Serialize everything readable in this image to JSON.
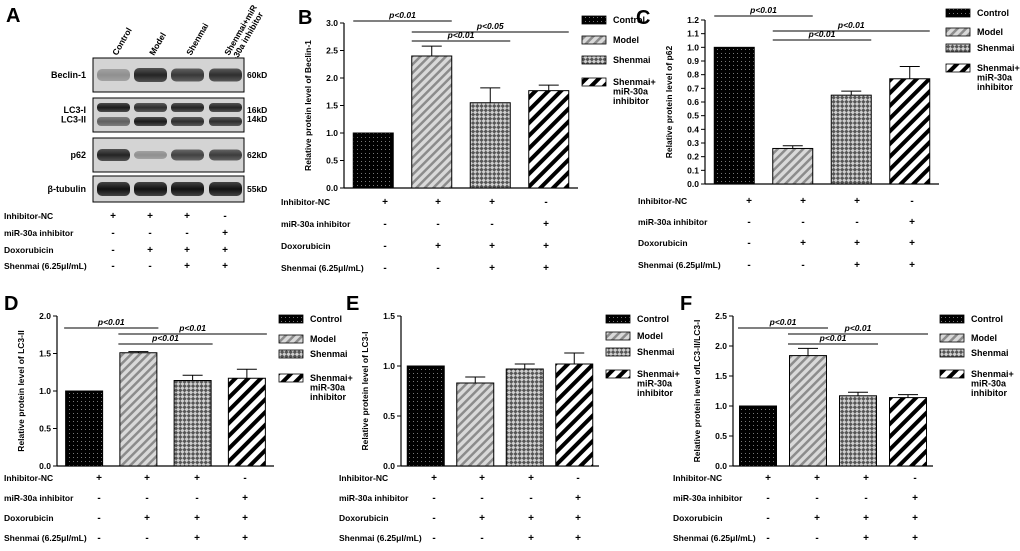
{
  "figure": {
    "conditions": [
      "Inhibitor-NC",
      "miR-30a inhibitor",
      "Doxorubicin",
      "Shenmai (6.25μl/mL)"
    ],
    "condition_matrix": [
      [
        "+",
        "+",
        "+",
        "-"
      ],
      [
        "-",
        "-",
        "-",
        "+"
      ],
      [
        "-",
        "+",
        "+",
        "+"
      ],
      [
        "-",
        "-",
        "+",
        "+"
      ]
    ],
    "legend": [
      "Control",
      "Model",
      "Shenmai",
      "Shenmai+\nmiR-30a\ninhibitor"
    ],
    "colors": {
      "ink": "#000000",
      "model_fill": "#d9d9d9",
      "model_stripe": "#8c8c8c",
      "shenmai_fill": "#555555"
    }
  },
  "blot": {
    "letter": "A",
    "lanes": [
      "Control",
      "Model",
      "Shenmai",
      "Shenmai+miR\n-30a inhibitor"
    ],
    "rows": [
      {
        "name": "Beclin-1",
        "size": "60kD"
      },
      {
        "name": "LC3-I\nLC3-II",
        "size": "16kD\n14kD"
      },
      {
        "name": "p62",
        "size": "62kD"
      },
      {
        "name": "β-tubulin",
        "size": "55kD"
      }
    ],
    "conditions": [
      "Inhibitor-NC",
      "miR-30a  inhibitor",
      "Doxorubicin",
      "Shenmai  (6.25μl/mL)"
    ]
  },
  "chart_data": [
    {
      "panel": "B",
      "type": "bar",
      "categories": [
        "Control",
        "Model",
        "Shenmai",
        "Shenmai+miR-30a inhibitor"
      ],
      "values": [
        1.0,
        2.4,
        1.55,
        1.77
      ],
      "errors": [
        0,
        0.18,
        0.27,
        0.1
      ],
      "ylabel": "Relative protein level of Beclin-1",
      "ylim": [
        0,
        3.0
      ],
      "yticks": [
        "0.0",
        "0.5",
        "1.0",
        "1.5",
        "2.0",
        "2.5",
        "3.0"
      ],
      "significance": [
        {
          "from": 0,
          "to": 1,
          "label": "p<0.01"
        },
        {
          "from": 1,
          "to": 2,
          "label": "p<0.01"
        },
        {
          "from": 1,
          "to": 3,
          "label": "p<0.05"
        }
      ]
    },
    {
      "panel": "C",
      "type": "bar",
      "categories": [
        "Control",
        "Model",
        "Shenmai",
        "Shenmai+miR-30a inhibitor"
      ],
      "values": [
        1.0,
        0.26,
        0.65,
        0.77
      ],
      "errors": [
        0,
        0.02,
        0.03,
        0.09
      ],
      "ylabel": "Relative protein level of p62",
      "ylim": [
        0,
        1.2
      ],
      "yticks": [
        "0.0",
        "0.1",
        "0.2",
        "0.3",
        "0.4",
        "0.5",
        "0.6",
        "0.7",
        "0.8",
        "0.9",
        "1.0",
        "1.1",
        "1.2"
      ],
      "significance": [
        {
          "from": 0,
          "to": 1,
          "label": "p<0.01"
        },
        {
          "from": 1,
          "to": 2,
          "label": "p<0.01"
        },
        {
          "from": 1,
          "to": 3,
          "label": "p<0.01"
        }
      ]
    },
    {
      "panel": "D",
      "type": "bar",
      "categories": [
        "Control",
        "Model",
        "Shenmai",
        "Shenmai+miR-30a inhibitor"
      ],
      "values": [
        1.0,
        1.51,
        1.14,
        1.17
      ],
      "errors": [
        0,
        0.015,
        0.07,
        0.12
      ],
      "ylabel": "Relative protein level of LC3-II",
      "ylim": [
        0,
        2.0
      ],
      "yticks": [
        "0.0",
        "0.5",
        "1.0",
        "1.5",
        "2.0"
      ],
      "significance": [
        {
          "from": 0,
          "to": 1,
          "label": "p<0.01"
        },
        {
          "from": 1,
          "to": 2,
          "label": "p<0.01"
        },
        {
          "from": 1,
          "to": 3,
          "label": "p<0.01"
        }
      ]
    },
    {
      "panel": "E",
      "type": "bar",
      "categories": [
        "Control",
        "Model",
        "Shenmai",
        "Shenmai+miR-30a inhibitor"
      ],
      "values": [
        1.0,
        0.83,
        0.97,
        1.02
      ],
      "errors": [
        0,
        0.06,
        0.05,
        0.11
      ],
      "ylabel": "Relative protein level of LC3-I",
      "ylim": [
        0,
        1.5
      ],
      "yticks": [
        "0.0",
        "0.5",
        "1.0",
        "1.5"
      ],
      "significance": []
    },
    {
      "panel": "F",
      "type": "bar",
      "categories": [
        "Control",
        "Model",
        "Shenmai",
        "Shenmai+miR-30a inhibitor"
      ],
      "values": [
        1.0,
        1.84,
        1.17,
        1.14
      ],
      "errors": [
        0,
        0.12,
        0.06,
        0.05
      ],
      "ylabel": "Relative protein level ofLC3-II/LC3-I",
      "ylim": [
        0,
        2.5
      ],
      "yticks": [
        "0.0",
        "0.5",
        "1.0",
        "1.5",
        "2.0",
        "2.5"
      ],
      "significance": [
        {
          "from": 0,
          "to": 1,
          "label": "p<0.01"
        },
        {
          "from": 1,
          "to": 2,
          "label": "p<0.01"
        },
        {
          "from": 1,
          "to": 3,
          "label": "p<0.01"
        }
      ]
    }
  ]
}
